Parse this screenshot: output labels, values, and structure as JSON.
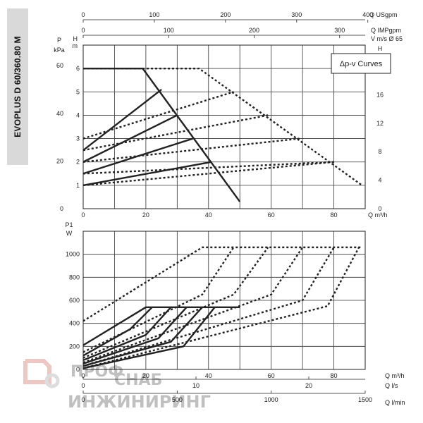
{
  "model_label": "EVOPLUS D 60/360.80 M",
  "chart_data": [
    {
      "type": "line",
      "title": "",
      "legend_box": "Δp-v Curves",
      "x_axis": {
        "label": "Q m³/h",
        "range": [
          0,
          90
        ],
        "ticks": [
          0,
          20,
          40,
          60,
          80
        ]
      },
      "top_axes": [
        {
          "label": "Q USgpm",
          "ticks": [
            0,
            100,
            200,
            300,
            400
          ]
        },
        {
          "label": "Q IMPgpm",
          "ticks": [
            0,
            100,
            200,
            300
          ]
        },
        {
          "label": "V m/s Ø 65",
          "ticks": []
        }
      ],
      "y_left_kpa": {
        "label": "P",
        "unit": "kPa",
        "ticks": [
          0,
          20,
          40,
          60
        ]
      },
      "y_left_m": {
        "label": "H",
        "unit": "m",
        "range": [
          0,
          7
        ],
        "ticks": [
          1,
          2,
          3,
          4,
          5,
          6
        ]
      },
      "y_right_ft": {
        "label": "H",
        "unit": "ft",
        "ticks": [
          0,
          4,
          8,
          12,
          16,
          20
        ]
      },
      "grid": true,
      "series": [
        {
          "style": "solid",
          "x": [
            0,
            19,
            50
          ],
          "y": [
            6,
            6,
            0.3
          ]
        },
        {
          "style": "solid",
          "x": [
            0,
            25
          ],
          "y": [
            2.5,
            5.1
          ]
        },
        {
          "style": "solid",
          "x": [
            0,
            30
          ],
          "y": [
            2.0,
            4.0
          ]
        },
        {
          "style": "solid",
          "x": [
            0,
            35
          ],
          "y": [
            1.5,
            3.0
          ]
        },
        {
          "style": "solid",
          "x": [
            0,
            41
          ],
          "y": [
            1.0,
            2.0
          ]
        },
        {
          "style": "dotted",
          "x": [
            0,
            37,
            89
          ],
          "y": [
            6,
            6,
            1.0
          ]
        },
        {
          "style": "dotted",
          "x": [
            0,
            48
          ],
          "y": [
            3.0,
            5.0
          ]
        },
        {
          "style": "dotted",
          "x": [
            0,
            59
          ],
          "y": [
            2.5,
            4.0
          ]
        },
        {
          "style": "dotted",
          "x": [
            0,
            69
          ],
          "y": [
            2.0,
            3.0
          ]
        },
        {
          "style": "dotted",
          "x": [
            0,
            80
          ],
          "y": [
            1.5,
            2.0
          ]
        },
        {
          "style": "dotted",
          "x": [
            0,
            80
          ],
          "y": [
            1.0,
            2.0
          ]
        }
      ]
    },
    {
      "type": "line",
      "title": "",
      "x_axis": {
        "label": "Q m³/h",
        "range": [
          0,
          90
        ],
        "ticks": [
          0,
          20,
          40,
          60,
          80
        ]
      },
      "bottom_axes": [
        {
          "label": "Q l/s",
          "ticks": [
            0,
            10,
            20
          ]
        },
        {
          "label": "Q l/min",
          "ticks": [
            0,
            500,
            1000,
            1500
          ]
        }
      ],
      "y_axis": {
        "label": "P1",
        "unit": "W",
        "range": [
          0,
          1200
        ],
        "ticks": [
          0,
          200,
          400,
          600,
          800,
          1000
        ]
      },
      "grid": true,
      "series": [
        {
          "style": "solid",
          "x": [
            0,
            20,
            50
          ],
          "y": [
            210,
            540,
            540
          ]
        },
        {
          "style": "solid",
          "x": [
            0,
            15,
            22
          ],
          "y": [
            120,
            350,
            540
          ]
        },
        {
          "style": "solid",
          "x": [
            0,
            20,
            28
          ],
          "y": [
            80,
            300,
            540
          ]
        },
        {
          "style": "solid",
          "x": [
            0,
            24,
            33
          ],
          "y": [
            50,
            270,
            540
          ]
        },
        {
          "style": "solid",
          "x": [
            0,
            28,
            38
          ],
          "y": [
            30,
            240,
            540
          ]
        },
        {
          "style": "solid",
          "x": [
            0,
            32,
            42
          ],
          "y": [
            10,
            200,
            540
          ]
        },
        {
          "style": "dotted",
          "x": [
            0,
            38,
            89
          ],
          "y": [
            420,
            1060,
            1060
          ]
        },
        {
          "style": "dotted",
          "x": [
            0,
            38,
            48
          ],
          "y": [
            150,
            650,
            1060
          ]
        },
        {
          "style": "dotted",
          "x": [
            0,
            48,
            59
          ],
          "y": [
            100,
            650,
            1060
          ]
        },
        {
          "style": "dotted",
          "x": [
            0,
            60,
            70
          ],
          "y": [
            60,
            650,
            1060
          ]
        },
        {
          "style": "dotted",
          "x": [
            0,
            70,
            80
          ],
          "y": [
            30,
            600,
            1060
          ]
        },
        {
          "style": "dotted",
          "x": [
            0,
            78,
            88
          ],
          "y": [
            10,
            550,
            1060
          ]
        }
      ]
    }
  ],
  "watermark": {
    "line1a": "ПРОФ",
    "line1b": "СНАБ",
    "line2": "ИНЖИНИРИНГ"
  }
}
